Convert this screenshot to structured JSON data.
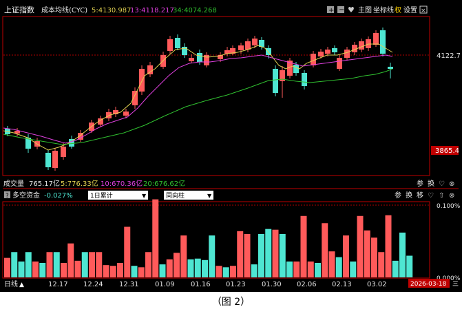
{
  "header": {
    "index_name": "上证指数",
    "indicator": "成本均线(CYC)",
    "ma5": "5:4130.987",
    "ma13": "13:4118.217",
    "ma34": "34:4074.268",
    "tools": [
      "主图",
      "坐标线",
      "权",
      "设置"
    ],
    "icons": [
      "plus-icon",
      "minus-icon",
      "heart-icon"
    ]
  },
  "price_axis": {
    "label_top": "4122.7",
    "label_low": "3865.4"
  },
  "volume_bar": {
    "title": "成交量",
    "value": "765.17亿",
    "ma5": "5:776.33亿",
    "ma10": "10:670.36亿",
    "ma20": "20:676.62亿",
    "buttons": [
      "参",
      "换"
    ]
  },
  "capital_panel": {
    "help": "?",
    "title": "多空资金",
    "value": "-0.027%",
    "dropdown1": "1日累计",
    "dropdown2": "同向柱",
    "buttons": [
      "参",
      "换",
      "移"
    ],
    "label_top": "0.100%",
    "label_zero": "0.000%"
  },
  "footer": {
    "period": "日线",
    "dates": [
      "12.17",
      "12.24",
      "12.31",
      "01.09",
      "01.16",
      "01.23",
      "01.30",
      "02.06",
      "02.13",
      "03.02"
    ],
    "current_date": "2026-03-18",
    "weekday": "三"
  },
  "colors": {
    "up": "#ff5a5a",
    "down": "#4ee6d2",
    "ma5": "#e0d050",
    "ma13": "#e040e0",
    "ma34": "#30c030",
    "panel_border": "#c00000"
  },
  "caption": "（图 2）",
  "chart_data": [
    {
      "type": "candlestick",
      "title": "上证指数",
      "series": [
        {
          "name": "5",
          "values": [
            4130.987
          ]
        },
        {
          "name": "13",
          "values": [
            4118.217
          ]
        },
        {
          "name": "34",
          "values": [
            4074.268
          ]
        }
      ],
      "y_labels": [
        "4122.7",
        "3865.4"
      ]
    },
    {
      "type": "bar",
      "title": "多空资金",
      "x_labels": [
        "12.17",
        "12.24",
        "12.31",
        "01.09",
        "01.16",
        "01.23",
        "01.30",
        "02.06",
        "02.13",
        "03.02"
      ],
      "values": [
        0.027,
        0.035,
        0.022,
        0.035,
        0.022,
        0.02,
        0.035,
        0.035,
        0.02,
        0.047,
        0.023,
        0.035,
        0.035,
        0.035,
        0.017,
        0.016,
        0.02,
        0.07,
        0.016,
        0.014,
        0.035,
        0.108,
        0.018,
        0.025,
        0.034,
        0.058,
        0.025,
        0.026,
        0.024,
        0.058,
        0.016,
        0.014,
        0.016,
        0.064,
        0.06,
        0.018,
        0.06,
        0.067,
        0.066,
        0.06,
        0.022,
        0.022,
        0.085,
        0.022,
        0.02,
        0.075,
        0.036,
        0.028,
        0.058,
        0.022,
        0.085,
        0.065,
        0.055,
        0.035,
        0.086,
        0.023,
        0.062,
        0.03
      ],
      "colors_up": [
        true,
        false,
        false,
        false,
        true,
        false,
        true,
        false,
        true,
        true,
        true,
        false,
        true,
        true,
        true,
        true,
        true,
        true,
        false,
        true,
        true,
        true,
        false,
        true,
        true,
        true,
        false,
        false,
        false,
        false,
        true,
        false,
        true,
        true,
        true,
        false,
        false,
        false,
        true,
        false,
        false,
        true,
        true,
        true,
        false,
        true,
        true,
        false,
        true,
        false,
        true,
        true,
        true,
        true,
        true,
        false,
        false,
        false
      ],
      "y_labels": [
        "0.100%",
        "0.000%"
      ]
    }
  ]
}
